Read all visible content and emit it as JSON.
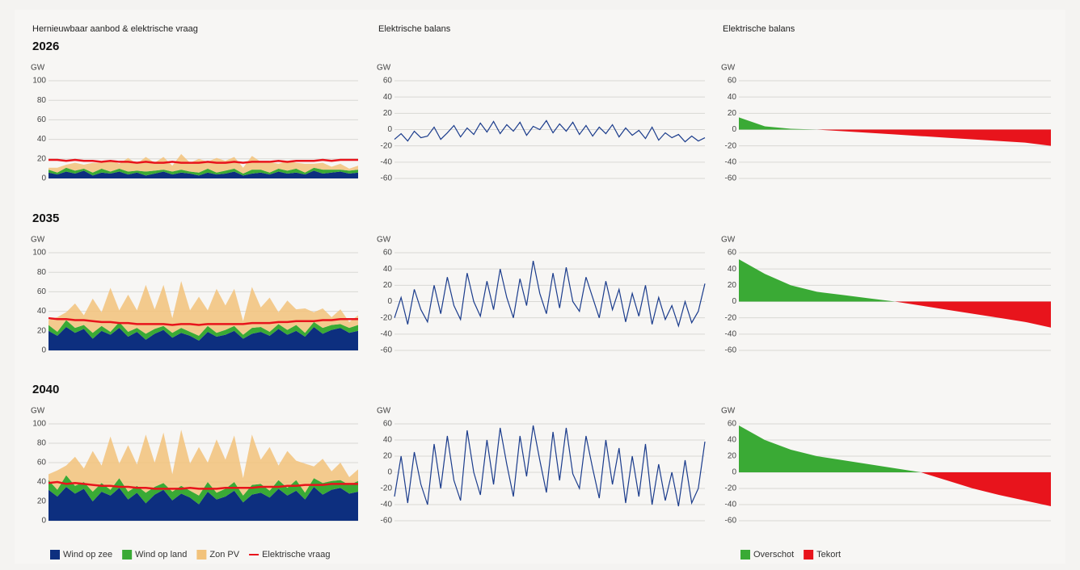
{
  "chart_data": [
    {
      "type": "stacked_area",
      "title": "Hernieuwbaar aanbod & elektrische vraag",
      "subtitle": "2026",
      "ylabel": "GW",
      "ylim": [
        0,
        100
      ],
      "yticks": [
        0,
        20,
        40,
        60,
        80,
        100
      ],
      "grid": true,
      "series": [
        {
          "kind": "area",
          "color": "#0d2f7f",
          "values": [
            6,
            4,
            7,
            5,
            8,
            3,
            6,
            5,
            7,
            4,
            6,
            3,
            5,
            7,
            4,
            6,
            5,
            3,
            6,
            4,
            5,
            7,
            3,
            5,
            6,
            4,
            7,
            5,
            6,
            4,
            8,
            5,
            6,
            7,
            5,
            6
          ]
        },
        {
          "kind": "area",
          "color": "#3aaa35",
          "values": [
            3,
            2,
            4,
            3,
            2,
            3,
            4,
            2,
            3,
            3,
            2,
            4,
            3,
            2,
            3,
            3,
            2,
            3,
            4,
            2,
            3,
            3,
            2,
            4,
            3,
            2,
            3,
            3,
            4,
            2,
            3,
            4,
            3,
            2,
            3,
            3
          ]
        },
        {
          "kind": "area",
          "color": "#f2c27a",
          "values": [
            2,
            5,
            3,
            8,
            4,
            10,
            6,
            12,
            5,
            14,
            7,
            15,
            8,
            13,
            6,
            16,
            9,
            14,
            7,
            15,
            10,
            12,
            6,
            14,
            8,
            11,
            5,
            10,
            6,
            9,
            4,
            7,
            3,
            6,
            2,
            4
          ]
        },
        {
          "kind": "line",
          "color": "#e8141c",
          "values": [
            19,
            19,
            18,
            19,
            18,
            18,
            17,
            18,
            17,
            17,
            16,
            17,
            16,
            16,
            17,
            16,
            16,
            16,
            17,
            16,
            16,
            17,
            16,
            17,
            17,
            17,
            18,
            17,
            18,
            18,
            18,
            19,
            18,
            19,
            19,
            19
          ]
        }
      ]
    },
    {
      "type": "line",
      "title": "Elektrische balans",
      "ylabel": "GW",
      "ylim": [
        -60,
        60
      ],
      "yticks": [
        -60,
        -40,
        -20,
        0,
        20,
        40,
        60
      ],
      "grid": true,
      "series": [
        {
          "color": "#1b3c8c",
          "values": [
            -12,
            -5,
            -14,
            -2,
            -10,
            -8,
            3,
            -12,
            -4,
            5,
            -9,
            2,
            -6,
            8,
            -3,
            10,
            -5,
            6,
            -2,
            9,
            -7,
            4,
            0,
            11,
            -4,
            7,
            -2,
            9,
            -6,
            5,
            -8,
            3,
            -5,
            6,
            -9,
            2,
            -7,
            -1,
            -11,
            3,
            -13,
            -4,
            -10,
            -6,
            -15,
            -8,
            -14,
            -10
          ]
        }
      ]
    },
    {
      "type": "area",
      "title": "Elektrische balans",
      "ylabel": "GW",
      "ylim": [
        -60,
        60
      ],
      "yticks": [
        -60,
        -40,
        -20,
        0,
        20,
        40,
        60
      ],
      "grid": true,
      "series": [
        {
          "color": "#3aaa35",
          "values": [
            15,
            4,
            1,
            0,
            null,
            null,
            null,
            null,
            null,
            null,
            null,
            null,
            null
          ]
        },
        {
          "color": "#e8141c",
          "values": [
            null,
            null,
            null,
            0,
            -2,
            -4,
            -6,
            -8,
            -10,
            -12,
            -14,
            -16,
            -20
          ]
        }
      ]
    },
    {
      "type": "stacked_area",
      "subtitle": "2035",
      "ylabel": "GW",
      "ylim": [
        0,
        100
      ],
      "yticks": [
        0,
        20,
        40,
        60,
        80,
        100
      ],
      "grid": true,
      "series": [
        {
          "kind": "area",
          "color": "#0d2f7f",
          "values": [
            20,
            15,
            24,
            18,
            22,
            12,
            20,
            16,
            23,
            14,
            19,
            11,
            17,
            21,
            13,
            18,
            15,
            10,
            19,
            14,
            16,
            20,
            12,
            17,
            19,
            15,
            22,
            16,
            20,
            14,
            24,
            17,
            21,
            23,
            18,
            20
          ]
        },
        {
          "kind": "area",
          "color": "#3aaa35",
          "values": [
            6,
            4,
            7,
            5,
            4,
            6,
            5,
            3,
            6,
            5,
            4,
            6,
            5,
            4,
            5,
            5,
            4,
            5,
            6,
            4,
            5,
            5,
            4,
            6,
            5,
            4,
            5,
            5,
            6,
            4,
            5,
            6,
            5,
            4,
            5,
            6
          ]
        },
        {
          "kind": "area",
          "color": "#f2c27a",
          "values": [
            5,
            15,
            8,
            25,
            10,
            35,
            14,
            45,
            12,
            38,
            18,
            50,
            20,
            42,
            15,
            48,
            22,
            40,
            16,
            45,
            25,
            38,
            14,
            42,
            20,
            35,
            12,
            30,
            16,
            25,
            10,
            20,
            8,
            15,
            6,
            10
          ]
        },
        {
          "kind": "line",
          "color": "#e8141c",
          "values": [
            33,
            32,
            32,
            31,
            31,
            30,
            29,
            29,
            28,
            28,
            27,
            27,
            27,
            27,
            26,
            27,
            27,
            26,
            27,
            27,
            27,
            27,
            27,
            28,
            28,
            28,
            29,
            29,
            30,
            30,
            30,
            31,
            31,
            32,
            32,
            32
          ]
        }
      ]
    },
    {
      "type": "line",
      "ylabel": "GW",
      "ylim": [
        -60,
        60
      ],
      "yticks": [
        -60,
        -40,
        -20,
        0,
        20,
        40,
        60
      ],
      "grid": true,
      "series": [
        {
          "color": "#1b3c8c",
          "values": [
            -20,
            5,
            -28,
            15,
            -10,
            -25,
            20,
            -15,
            30,
            -5,
            -22,
            35,
            0,
            -18,
            25,
            -10,
            40,
            5,
            -20,
            28,
            -5,
            50,
            10,
            -15,
            35,
            -8,
            42,
            0,
            -12,
            30,
            5,
            -20,
            25,
            -10,
            15,
            -25,
            10,
            -18,
            20,
            -28,
            5,
            -22,
            -5,
            -30,
            0,
            -26,
            -12,
            22
          ]
        }
      ]
    },
    {
      "type": "area",
      "ylabel": "GW",
      "ylim": [
        -60,
        60
      ],
      "yticks": [
        -60,
        -40,
        -20,
        0,
        20,
        40,
        60
      ],
      "grid": true,
      "series": [
        {
          "color": "#3aaa35",
          "values": [
            52,
            34,
            20,
            12,
            8,
            4,
            0,
            null,
            null,
            null,
            null,
            null,
            null
          ]
        },
        {
          "color": "#e8141c",
          "values": [
            null,
            null,
            null,
            null,
            null,
            null,
            0,
            -5,
            -10,
            -15,
            -20,
            -25,
            -32
          ]
        }
      ]
    },
    {
      "type": "stacked_area",
      "subtitle": "2040",
      "ylabel": "GW",
      "ylim": [
        0,
        100
      ],
      "yticks": [
        0,
        20,
        40,
        60,
        80,
        100
      ],
      "grid": true,
      "legend": "bottom-left",
      "series": [
        {
          "kind": "area",
          "name": "Wind op zee",
          "color": "#0d2f7f",
          "values": [
            32,
            25,
            35,
            28,
            33,
            20,
            30,
            26,
            34,
            22,
            29,
            18,
            27,
            32,
            21,
            28,
            24,
            17,
            30,
            22,
            25,
            31,
            19,
            27,
            29,
            24,
            33,
            26,
            31,
            22,
            35,
            27,
            32,
            34,
            28,
            30
          ]
        },
        {
          "kind": "area",
          "name": "Wind op land",
          "color": "#3aaa35",
          "values": [
            10,
            7,
            12,
            8,
            7,
            10,
            9,
            6,
            10,
            8,
            7,
            11,
            8,
            7,
            9,
            8,
            7,
            9,
            10,
            7,
            8,
            9,
            7,
            10,
            9,
            7,
            9,
            8,
            11,
            7,
            9,
            12,
            9,
            8,
            9,
            11
          ]
        },
        {
          "kind": "area",
          "name": "Zon PV",
          "color": "#f2c27a",
          "values": [
            6,
            20,
            10,
            30,
            14,
            42,
            18,
            55,
            15,
            48,
            22,
            60,
            25,
            52,
            18,
            58,
            28,
            50,
            20,
            55,
            30,
            48,
            18,
            52,
            25,
            45,
            15,
            38,
            20,
            30,
            12,
            25,
            10,
            18,
            8,
            12
          ]
        },
        {
          "kind": "line",
          "name": "Elektrische vraag",
          "color": "#e8141c",
          "values": [
            39,
            40,
            38,
            39,
            38,
            37,
            36,
            36,
            35,
            35,
            34,
            34,
            33,
            33,
            33,
            33,
            34,
            33,
            33,
            33,
            34,
            34,
            34,
            34,
            35,
            35,
            35,
            36,
            36,
            37,
            37,
            37,
            38,
            38,
            38,
            38
          ]
        }
      ]
    },
    {
      "type": "line",
      "ylabel": "GW",
      "ylim": [
        -60,
        60
      ],
      "yticks": [
        -60,
        -40,
        -20,
        0,
        20,
        40,
        60
      ],
      "grid": true,
      "series": [
        {
          "color": "#1b3c8c",
          "values": [
            -30,
            20,
            -38,
            25,
            -15,
            -40,
            35,
            -20,
            45,
            -10,
            -35,
            52,
            0,
            -28,
            40,
            -15,
            55,
            10,
            -30,
            45,
            -5,
            58,
            15,
            -25,
            50,
            -10,
            55,
            -2,
            -20,
            45,
            5,
            -32,
            40,
            -15,
            30,
            -38,
            20,
            -30,
            35,
            -40,
            10,
            -35,
            0,
            -42,
            15,
            -38,
            -20,
            38
          ]
        }
      ]
    },
    {
      "type": "area",
      "ylabel": "GW",
      "ylim": [
        -60,
        60
      ],
      "yticks": [
        -60,
        -40,
        -20,
        0,
        20,
        40,
        60
      ],
      "grid": true,
      "legend": "bottom-left",
      "series": [
        {
          "name": "Overschot",
          "color": "#3aaa35",
          "values": [
            58,
            40,
            28,
            20,
            15,
            10,
            5,
            0,
            null,
            null,
            null,
            null,
            null
          ]
        },
        {
          "name": "Tekort",
          "color": "#e8141c",
          "values": [
            null,
            null,
            null,
            null,
            null,
            null,
            null,
            0,
            -10,
            -20,
            -28,
            -35,
            -42
          ]
        }
      ]
    }
  ]
}
